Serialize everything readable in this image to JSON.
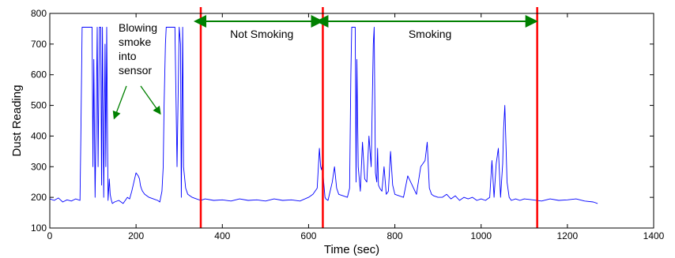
{
  "chart_data": {
    "type": "line",
    "xlabel": "Time (sec)",
    "ylabel": "Dust Reading",
    "xlim": [
      0,
      1400
    ],
    "ylim": [
      100,
      800
    ],
    "xticks": [
      0,
      200,
      400,
      600,
      800,
      1000,
      1200,
      1400
    ],
    "yticks": [
      100,
      200,
      300,
      400,
      500,
      600,
      700,
      800
    ],
    "grid": false,
    "colors": {
      "line": "#0000ff",
      "marker": "#ff0000",
      "arrow": "#008000"
    },
    "series": [
      {
        "x": [
          0,
          10,
          20,
          30,
          40,
          50,
          60,
          70,
          72,
          75,
          80,
          90,
          95,
          98,
          100,
          102,
          105,
          108,
          110,
          112,
          115,
          118,
          120,
          122,
          125,
          128,
          130,
          132,
          135,
          138,
          140,
          142,
          145,
          150,
          160,
          170,
          175,
          180,
          185,
          190,
          195,
          200,
          205,
          208,
          210,
          212,
          215,
          220,
          230,
          240,
          250,
          255,
          260,
          263,
          265,
          268,
          270,
          275,
          280,
          285,
          290,
          295,
          300,
          303,
          305,
          308,
          310,
          315,
          320,
          330,
          340,
          350,
          360,
          380,
          400,
          420,
          440,
          460,
          480,
          500,
          520,
          540,
          560,
          580,
          600,
          610,
          620,
          625,
          628,
          630,
          632,
          635,
          638,
          640,
          645,
          650,
          655,
          660,
          665,
          670,
          680,
          690,
          695,
          698,
          700,
          702,
          705,
          708,
          710,
          712,
          715,
          720,
          725,
          730,
          735,
          740,
          745,
          750,
          752,
          755,
          758,
          760,
          762,
          765,
          770,
          775,
          780,
          785,
          790,
          795,
          800,
          810,
          820,
          830,
          840,
          850,
          860,
          870,
          875,
          880,
          885,
          890,
          900,
          910,
          920,
          930,
          940,
          950,
          960,
          970,
          980,
          990,
          1000,
          1010,
          1020,
          1025,
          1030,
          1035,
          1040,
          1045,
          1050,
          1052,
          1055,
          1058,
          1060,
          1065,
          1070,
          1080,
          1090,
          1100,
          1120,
          1140,
          1160,
          1180,
          1200,
          1220,
          1240,
          1260,
          1270
        ],
        "y": [
          195,
          190,
          198,
          185,
          192,
          188,
          195,
          190,
          400,
          755,
          755,
          755,
          755,
          755,
          300,
          650,
          200,
          500,
          755,
          300,
          755,
          755,
          240,
          755,
          200,
          700,
          300,
          755,
          190,
          260,
          210,
          195,
          180,
          185,
          190,
          180,
          190,
          200,
          195,
          220,
          250,
          280,
          270,
          260,
          240,
          230,
          220,
          210,
          200,
          195,
          190,
          185,
          220,
          300,
          500,
          700,
          755,
          755,
          755,
          755,
          755,
          300,
          755,
          700,
          200,
          755,
          300,
          230,
          210,
          200,
          195,
          190,
          195,
          190,
          192,
          188,
          195,
          190,
          192,
          188,
          195,
          190,
          192,
          188,
          200,
          210,
          230,
          360,
          300,
          290,
          310,
          250,
          200,
          195,
          190,
          220,
          250,
          300,
          230,
          210,
          205,
          200,
          230,
          600,
          755,
          755,
          755,
          755,
          250,
          650,
          300,
          220,
          380,
          260,
          250,
          400,
          300,
          700,
          755,
          280,
          250,
          360,
          240,
          230,
          220,
          300,
          210,
          220,
          350,
          240,
          210,
          205,
          200,
          270,
          240,
          210,
          300,
          320,
          380,
          230,
          210,
          205,
          200,
          200,
          210,
          195,
          205,
          190,
          200,
          195,
          200,
          190,
          195,
          190,
          200,
          320,
          200,
          310,
          360,
          200,
          310,
          420,
          500,
          350,
          250,
          200,
          190,
          195,
          190,
          195,
          192,
          188,
          195,
          190,
          192,
          195,
          188,
          185,
          180
        ]
      }
    ],
    "markers": [
      {
        "x": 350
      },
      {
        "x": 633
      },
      {
        "x": 1130
      }
    ],
    "regions": [
      {
        "label": "Not Smoking",
        "x_start": 350,
        "x_end": 633
      },
      {
        "label": "Smoking",
        "x_start": 633,
        "x_end": 1130
      }
    ],
    "annotation": {
      "lines": [
        "Blowing",
        "smoke",
        "into",
        "sensor"
      ],
      "arrows": [
        {
          "from": [
            150,
            600
          ],
          "to": [
            150,
            460
          ]
        },
        {
          "from": [
            200,
            600
          ],
          "to": [
            255,
            475
          ]
        }
      ]
    }
  }
}
